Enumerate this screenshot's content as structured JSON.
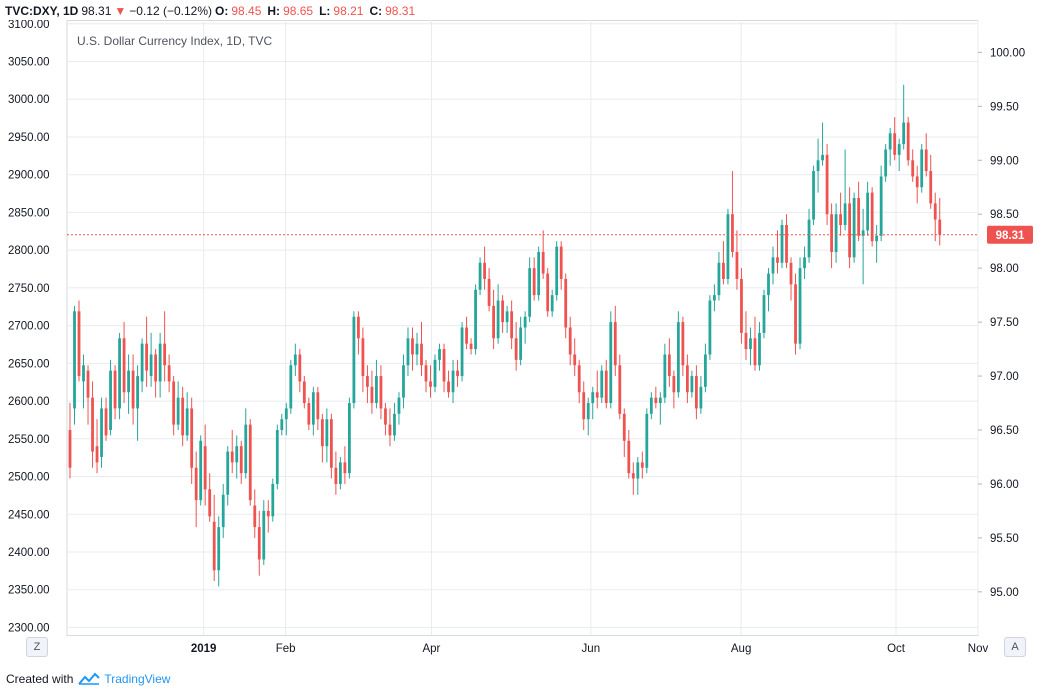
{
  "header": {
    "symbol": "TVC:DXY, 1D",
    "last": "98.31",
    "arrow": "▼",
    "change": "−0.12 (−0.12%)",
    "o_label": "O:",
    "o_value": "98.45",
    "h_label": "H:",
    "h_value": "98.65",
    "l_label": "L:",
    "l_value": "98.21",
    "c_label": "C:",
    "c_value": "98.31"
  },
  "legend_title": "U.S. Dollar Currency Index, 1D, TVC",
  "footer": {
    "created_with": "Created with",
    "brand": "TradingView"
  },
  "buttons": {
    "left_scale": "Z",
    "right_scale": "A"
  },
  "colors": {
    "up": "#26a69a",
    "down": "#ef5350",
    "grid": "#e8ebef",
    "price_line": "#ef5350"
  },
  "chart_data": {
    "type": "candlestick",
    "title": "U.S. Dollar Currency Index, 1D, TVC",
    "left_axis": {
      "ticks": [
        "3100.00",
        "3050.00",
        "3000.00",
        "2950.00",
        "2900.00",
        "2850.00",
        "2800.00",
        "2750.00",
        "2700.00",
        "2650.00",
        "2600.00",
        "2550.00",
        "2500.00",
        "2450.00",
        "2400.00",
        "2350.00",
        "2300.00"
      ],
      "range": [
        2290,
        3105
      ]
    },
    "right_axis": {
      "ticks": [
        "100.00",
        "99.50",
        "99.00",
        "98.50",
        "98.00",
        "97.50",
        "97.00",
        "96.50",
        "96.00",
        "95.50",
        "95.00"
      ],
      "range": [
        94.6,
        100.3
      ]
    },
    "x_axis": {
      "labels": [
        "2019",
        "Feb",
        "Apr",
        "Jun",
        "Aug",
        "Oct",
        "Nov"
      ],
      "bold": [
        "2019"
      ]
    },
    "last_price": "98.31",
    "last_value": 98.31,
    "grid": true,
    "candles": [
      [
        96.5,
        96.75,
        96.05,
        96.15
      ],
      [
        96.7,
        97.65,
        96.55,
        97.6
      ],
      [
        97.6,
        97.7,
        96.95,
        97.0
      ],
      [
        96.95,
        97.2,
        96.7,
        97.1
      ],
      [
        97.05,
        97.1,
        96.55,
        96.8
      ],
      [
        96.8,
        96.95,
        96.15,
        96.3
      ],
      [
        96.35,
        96.6,
        96.1,
        96.2
      ],
      [
        96.25,
        96.8,
        96.15,
        96.7
      ],
      [
        96.7,
        96.8,
        96.4,
        96.45
      ],
      [
        96.5,
        97.15,
        96.45,
        97.05
      ],
      [
        97.05,
        97.1,
        96.6,
        96.7
      ],
      [
        96.7,
        97.4,
        96.6,
        97.35
      ],
      [
        97.35,
        97.5,
        96.75,
        96.85
      ],
      [
        96.85,
        97.2,
        96.65,
        97.05
      ],
      [
        97.05,
        97.2,
        96.55,
        96.7
      ],
      [
        96.7,
        97.1,
        96.4,
        97.0
      ],
      [
        96.95,
        97.35,
        96.85,
        97.3
      ],
      [
        97.3,
        97.55,
        96.9,
        97.05
      ],
      [
        97.0,
        97.4,
        96.9,
        97.2
      ],
      [
        97.2,
        97.25,
        96.8,
        96.95
      ],
      [
        96.95,
        97.4,
        96.8,
        97.3
      ],
      [
        97.3,
        97.6,
        96.95,
        97.1
      ],
      [
        97.1,
        97.2,
        96.85,
        96.95
      ],
      [
        96.95,
        97.0,
        96.45,
        96.55
      ],
      [
        96.55,
        96.95,
        96.5,
        96.8
      ],
      [
        96.8,
        96.9,
        96.35,
        96.45
      ],
      [
        96.45,
        96.85,
        96.4,
        96.7
      ],
      [
        96.7,
        96.8,
        96.0,
        96.15
      ],
      [
        96.15,
        96.3,
        95.6,
        95.85
      ],
      [
        95.85,
        96.45,
        95.8,
        96.4
      ],
      [
        96.35,
        96.55,
        95.8,
        95.95
      ],
      [
        95.95,
        96.1,
        95.65,
        95.7
      ],
      [
        95.65,
        95.9,
        95.1,
        95.2
      ],
      [
        95.2,
        95.7,
        95.05,
        95.6
      ],
      [
        95.6,
        96.0,
        95.5,
        95.9
      ],
      [
        95.9,
        96.35,
        95.8,
        96.3
      ],
      [
        96.3,
        96.5,
        96.1,
        96.2
      ],
      [
        96.2,
        96.45,
        96.05,
        96.35
      ],
      [
        96.35,
        96.4,
        96.0,
        96.1
      ],
      [
        96.1,
        96.7,
        96.05,
        96.55
      ],
      [
        96.55,
        96.6,
        95.8,
        95.85
      ],
      [
        95.8,
        95.95,
        95.5,
        95.6
      ],
      [
        95.6,
        95.75,
        95.15,
        95.3
      ],
      [
        95.3,
        95.85,
        95.25,
        95.75
      ],
      [
        95.75,
        95.85,
        95.55,
        95.7
      ],
      [
        95.7,
        96.05,
        95.65,
        96.0
      ],
      [
        96.0,
        96.55,
        95.95,
        96.5
      ],
      [
        96.5,
        96.65,
        96.45,
        96.6
      ],
      [
        96.6,
        96.75,
        96.45,
        96.7
      ],
      [
        96.7,
        97.15,
        96.65,
        97.1
      ],
      [
        97.1,
        97.3,
        97.0,
        97.2
      ],
      [
        97.2,
        97.25,
        96.85,
        96.95
      ],
      [
        96.95,
        97.0,
        96.7,
        96.75
      ],
      [
        96.75,
        96.8,
        96.5,
        96.55
      ],
      [
        96.55,
        96.9,
        96.45,
        96.85
      ],
      [
        96.85,
        96.9,
        96.5,
        96.6
      ],
      [
        96.6,
        96.65,
        96.2,
        96.35
      ],
      [
        96.35,
        96.7,
        96.2,
        96.6
      ],
      [
        96.6,
        96.65,
        96.05,
        96.15
      ],
      [
        96.15,
        96.3,
        95.9,
        96.0
      ],
      [
        96.0,
        96.25,
        95.95,
        96.2
      ],
      [
        96.2,
        96.35,
        96.0,
        96.1
      ],
      [
        96.1,
        96.8,
        96.05,
        96.75
      ],
      [
        96.75,
        97.6,
        96.7,
        97.55
      ],
      [
        97.55,
        97.6,
        97.2,
        97.35
      ],
      [
        97.35,
        97.45,
        96.85,
        97.0
      ],
      [
        97.0,
        97.1,
        96.75,
        96.9
      ],
      [
        96.9,
        97.05,
        96.65,
        96.75
      ],
      [
        96.75,
        97.15,
        96.7,
        97.0
      ],
      [
        97.0,
        97.1,
        96.6,
        96.7
      ],
      [
        96.7,
        96.75,
        96.45,
        96.55
      ],
      [
        96.55,
        96.7,
        96.35,
        96.45
      ],
      [
        96.45,
        96.75,
        96.4,
        96.65
      ],
      [
        96.65,
        96.85,
        96.55,
        96.8
      ],
      [
        96.8,
        97.2,
        96.7,
        97.1
      ],
      [
        97.1,
        97.45,
        97.0,
        97.35
      ],
      [
        97.35,
        97.45,
        97.05,
        97.2
      ],
      [
        97.2,
        97.4,
        97.1,
        97.3
      ],
      [
        97.3,
        97.5,
        97.0,
        97.1
      ],
      [
        97.1,
        97.15,
        96.85,
        96.95
      ],
      [
        96.95,
        97.1,
        96.8,
        96.9
      ],
      [
        96.9,
        97.2,
        96.85,
        97.15
      ],
      [
        97.15,
        97.3,
        97.05,
        97.25
      ],
      [
        97.25,
        97.3,
        96.85,
        96.95
      ],
      [
        96.95,
        97.05,
        96.8,
        96.85
      ],
      [
        96.85,
        97.15,
        96.75,
        97.05
      ],
      [
        97.05,
        97.15,
        96.9,
        97.0
      ],
      [
        97.0,
        97.5,
        96.95,
        97.45
      ],
      [
        97.45,
        97.55,
        97.25,
        97.3
      ],
      [
        97.3,
        97.35,
        97.2,
        97.25
      ],
      [
        97.25,
        97.85,
        97.2,
        97.8
      ],
      [
        97.8,
        98.1,
        97.75,
        98.05
      ],
      [
        98.05,
        98.2,
        97.8,
        97.9
      ],
      [
        97.9,
        98.0,
        97.6,
        97.65
      ],
      [
        97.65,
        97.8,
        97.25,
        97.35
      ],
      [
        97.35,
        97.85,
        97.3,
        97.7
      ],
      [
        97.7,
        97.75,
        97.4,
        97.5
      ],
      [
        97.5,
        97.65,
        97.4,
        97.6
      ],
      [
        97.6,
        97.7,
        97.25,
        97.35
      ],
      [
        97.35,
        97.5,
        97.05,
        97.15
      ],
      [
        97.15,
        97.55,
        97.1,
        97.45
      ],
      [
        97.45,
        97.6,
        97.3,
        97.55
      ],
      [
        97.55,
        98.1,
        97.5,
        98.0
      ],
      [
        98.0,
        98.1,
        97.7,
        97.75
      ],
      [
        97.75,
        98.2,
        97.7,
        98.15
      ],
      [
        98.15,
        98.35,
        97.9,
        97.95
      ],
      [
        97.95,
        98.0,
        97.55,
        97.6
      ],
      [
        97.6,
        97.8,
        97.55,
        97.75
      ],
      [
        97.75,
        98.25,
        97.7,
        98.2
      ],
      [
        98.2,
        98.25,
        97.8,
        97.9
      ],
      [
        97.9,
        97.95,
        97.35,
        97.45
      ],
      [
        97.45,
        97.55,
        97.1,
        97.2
      ],
      [
        97.2,
        97.35,
        97.0,
        97.1
      ],
      [
        97.1,
        97.15,
        96.75,
        96.85
      ],
      [
        96.85,
        96.95,
        96.5,
        96.6
      ],
      [
        96.6,
        96.8,
        96.45,
        96.75
      ],
      [
        96.75,
        96.9,
        96.6,
        96.85
      ],
      [
        96.85,
        97.05,
        96.7,
        96.8
      ],
      [
        96.8,
        97.1,
        96.75,
        97.05
      ],
      [
        97.05,
        97.15,
        96.7,
        96.75
      ],
      [
        96.75,
        97.6,
        96.7,
        97.5
      ],
      [
        97.5,
        97.65,
        97.0,
        97.1
      ],
      [
        97.1,
        97.2,
        96.6,
        96.65
      ],
      [
        96.65,
        96.7,
        96.25,
        96.4
      ],
      [
        96.4,
        96.5,
        96.05,
        96.1
      ],
      [
        96.1,
        96.2,
        95.9,
        96.05
      ],
      [
        96.05,
        96.25,
        95.9,
        96.2
      ],
      [
        96.2,
        96.3,
        96.05,
        96.15
      ],
      [
        96.15,
        96.7,
        96.1,
        96.65
      ],
      [
        96.65,
        96.85,
        96.6,
        96.8
      ],
      [
        96.8,
        96.9,
        96.7,
        96.75
      ],
      [
        96.75,
        96.85,
        96.55,
        96.8
      ],
      [
        96.8,
        97.3,
        96.75,
        97.2
      ],
      [
        97.2,
        97.35,
        96.9,
        97.0
      ],
      [
        97.0,
        97.05,
        96.7,
        96.85
      ],
      [
        96.85,
        97.6,
        96.8,
        97.5
      ],
      [
        97.5,
        97.55,
        97.0,
        97.1
      ],
      [
        97.1,
        97.2,
        96.75,
        96.85
      ],
      [
        96.85,
        97.05,
        96.8,
        97.0
      ],
      [
        97.0,
        97.1,
        96.6,
        96.7
      ],
      [
        96.7,
        97.0,
        96.65,
        96.9
      ],
      [
        96.9,
        97.3,
        96.85,
        97.2
      ],
      [
        97.2,
        97.75,
        97.15,
        97.7
      ],
      [
        97.7,
        97.85,
        97.6,
        97.75
      ],
      [
        97.75,
        98.15,
        97.7,
        98.05
      ],
      [
        98.05,
        98.25,
        97.85,
        97.9
      ],
      [
        97.9,
        98.55,
        97.85,
        98.5
      ],
      [
        98.5,
        98.9,
        98.1,
        98.15
      ],
      [
        98.15,
        98.35,
        97.8,
        97.9
      ],
      [
        97.9,
        98.0,
        97.3,
        97.4
      ],
      [
        97.4,
        97.6,
        97.15,
        97.25
      ],
      [
        97.25,
        97.45,
        97.1,
        97.35
      ],
      [
        97.35,
        97.55,
        97.05,
        97.1
      ],
      [
        97.1,
        97.5,
        97.05,
        97.4
      ],
      [
        97.4,
        97.8,
        97.35,
        97.75
      ],
      [
        97.75,
        98.0,
        97.6,
        97.95
      ],
      [
        97.95,
        98.2,
        97.85,
        98.1
      ],
      [
        98.1,
        98.35,
        97.95,
        98.05
      ],
      [
        98.05,
        98.45,
        98.0,
        98.4
      ],
      [
        98.4,
        98.5,
        98.0,
        98.05
      ],
      [
        98.05,
        98.1,
        97.7,
        97.85
      ],
      [
        97.85,
        97.95,
        97.2,
        97.3
      ],
      [
        97.3,
        98.1,
        97.25,
        98.0
      ],
      [
        98.0,
        98.2,
        97.9,
        98.1
      ],
      [
        98.1,
        98.55,
        98.05,
        98.45
      ],
      [
        98.45,
        98.95,
        98.4,
        98.9
      ],
      [
        98.9,
        99.2,
        98.7,
        99.0
      ],
      [
        99.0,
        99.35,
        98.95,
        99.05
      ],
      [
        99.05,
        99.15,
        98.4,
        98.5
      ],
      [
        98.5,
        98.6,
        98.0,
        98.15
      ],
      [
        98.15,
        98.6,
        98.05,
        98.5
      ],
      [
        98.5,
        98.7,
        98.3,
        98.4
      ],
      [
        98.4,
        99.1,
        98.35,
        98.6
      ],
      [
        98.6,
        98.75,
        98.0,
        98.1
      ],
      [
        98.1,
        98.7,
        98.05,
        98.65
      ],
      [
        98.65,
        98.8,
        98.25,
        98.3
      ],
      [
        98.3,
        98.55,
        97.85,
        98.35
      ],
      [
        98.35,
        98.8,
        98.3,
        98.7
      ],
      [
        98.7,
        98.75,
        98.2,
        98.25
      ],
      [
        98.25,
        98.4,
        98.05,
        98.3
      ],
      [
        98.3,
        98.95,
        98.25,
        98.85
      ],
      [
        98.85,
        99.15,
        98.8,
        99.1
      ],
      [
        99.1,
        99.3,
        98.95,
        99.25
      ],
      [
        99.25,
        99.4,
        99.0,
        99.05
      ],
      [
        99.05,
        99.2,
        98.9,
        99.15
      ],
      [
        99.15,
        99.7,
        99.1,
        99.35
      ],
      [
        99.35,
        99.4,
        98.95,
        99.0
      ],
      [
        99.0,
        99.1,
        98.8,
        98.85
      ],
      [
        98.85,
        98.95,
        98.6,
        98.75
      ],
      [
        98.75,
        99.15,
        98.7,
        99.1
      ],
      [
        99.1,
        99.25,
        98.85,
        98.9
      ],
      [
        98.9,
        99.05,
        98.55,
        98.6
      ],
      [
        98.6,
        98.7,
        98.25,
        98.45
      ],
      [
        98.45,
        98.65,
        98.21,
        98.31
      ]
    ]
  }
}
